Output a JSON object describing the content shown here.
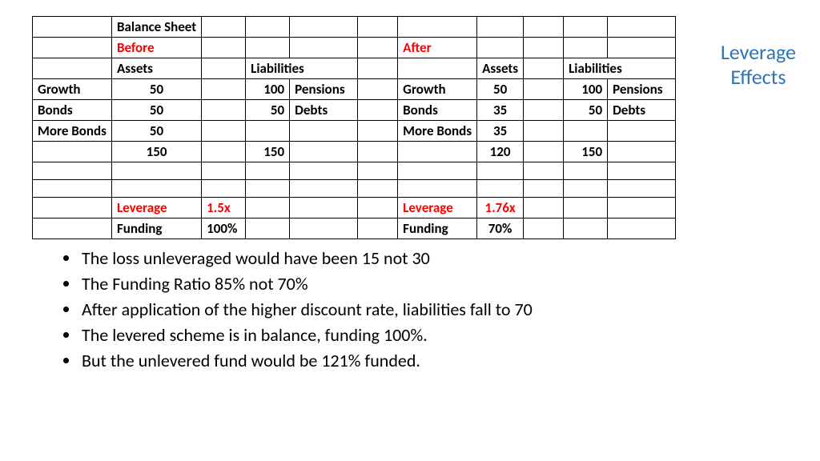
{
  "title": {
    "line1": "Leverage",
    "line2": "Effects"
  },
  "colors": {
    "highlight": "#ff0000",
    "title": "#2e75b6",
    "border": "#000000",
    "bg": "#ffffff"
  },
  "table": {
    "r0": {
      "c1": "Balance Sheet"
    },
    "r1": {
      "c1": "Before",
      "c6": "After"
    },
    "r2": {
      "c1": "Assets",
      "c3": "Liabilities",
      "c7": "Assets",
      "c9": "Liabilities"
    },
    "r3": {
      "c0": "Growth",
      "c1": "50",
      "c3": "100",
      "c4": "Pensions",
      "c6": "Growth",
      "c7": "50",
      "c9": "100",
      "c10": "Pensions"
    },
    "r4": {
      "c0": "Bonds",
      "c1": "50",
      "c3": "50",
      "c4": "Debts",
      "c6": "Bonds",
      "c7": "35",
      "c9": "50",
      "c10": "Debts"
    },
    "r5": {
      "c0": "More Bonds",
      "c1": "50",
      "c6": "More Bonds",
      "c7": "35"
    },
    "r6": {
      "c1": "150",
      "c3": "150",
      "c7": "120",
      "c9": "150"
    },
    "r9": {
      "c1": "Leverage",
      "c2": "1.5x",
      "c6": "Leverage",
      "c7": "1.76x"
    },
    "r10": {
      "c1": "Funding",
      "c2": "100%",
      "c6": "Funding",
      "c7": "70%"
    }
  },
  "bullets": [
    "The loss unleveraged would have been 15 not 30",
    "The Funding Ratio 85% not 70%",
    "After application of the higher discount rate, liabilities fall to 70",
    "The levered scheme is in balance, funding 100%.",
    "But the unlevered fund would be 121% funded."
  ]
}
